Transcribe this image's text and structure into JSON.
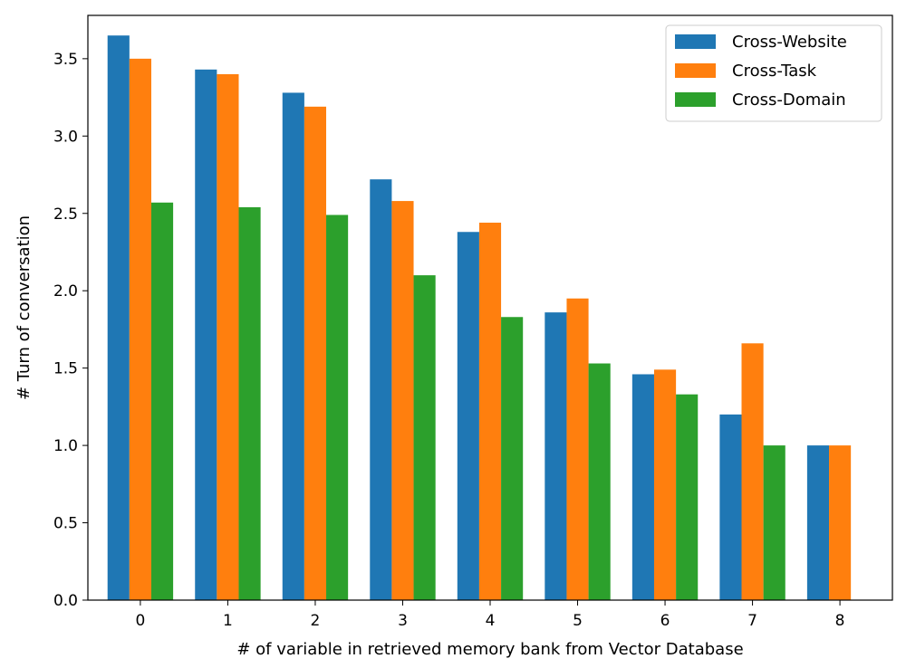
{
  "chart_data": {
    "type": "bar",
    "categories": [
      "0",
      "1",
      "2",
      "3",
      "4",
      "5",
      "6",
      "7",
      "8"
    ],
    "series": [
      {
        "name": "Cross-Website",
        "color": "#1f77b4",
        "values": [
          3.65,
          3.43,
          3.28,
          2.72,
          2.38,
          1.86,
          1.46,
          1.2,
          1.0
        ]
      },
      {
        "name": "Cross-Task",
        "color": "#ff7f0e",
        "values": [
          3.5,
          3.4,
          3.19,
          2.58,
          2.44,
          1.95,
          1.49,
          1.66,
          1.0
        ]
      },
      {
        "name": "Cross-Domain",
        "color": "#2ca02c",
        "values": [
          2.57,
          2.54,
          2.49,
          2.1,
          1.83,
          1.53,
          1.33,
          1.0,
          null
        ]
      }
    ],
    "xlabel": "# of variable in retrieved memory bank from Vector Database",
    "ylabel": "# Turn of conversation",
    "ylim": [
      0,
      3.78
    ],
    "yticks": [
      "0.0",
      "0.5",
      "1.0",
      "1.5",
      "2.0",
      "2.5",
      "3.0",
      "3.5"
    ],
    "grid": false,
    "legend_position": "top-right"
  }
}
